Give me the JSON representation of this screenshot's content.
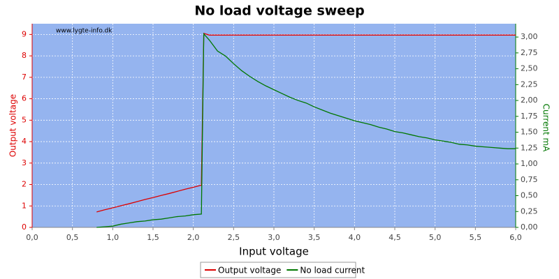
{
  "chart_data": {
    "type": "line",
    "title": "No load voltage sweep",
    "watermark": "www.lygte-info.dk",
    "x_label": "Input voltage",
    "y_label": "Output voltage",
    "y2_label": "Current mA",
    "x": [
      0.8,
      0.9,
      1.0,
      1.1,
      1.2,
      1.3,
      1.4,
      1.5,
      1.6,
      1.7,
      1.8,
      1.9,
      2.0,
      2.1,
      2.13,
      2.2,
      2.3,
      2.4,
      2.5,
      2.6,
      2.7,
      2.8,
      2.9,
      3.0,
      3.1,
      3.2,
      3.3,
      3.4,
      3.5,
      3.6,
      3.7,
      3.8,
      3.9,
      4.0,
      4.1,
      4.2,
      4.3,
      4.4,
      4.5,
      4.6,
      4.7,
      4.8,
      4.9,
      5.0,
      5.1,
      5.2,
      5.3,
      5.4,
      5.5,
      5.6,
      5.7,
      5.8,
      5.9,
      6.0
    ],
    "series": [
      {
        "name": "Output voltage",
        "color": "#dd0000",
        "axis": "y",
        "values": [
          0.72,
          0.82,
          0.91,
          1.01,
          1.1,
          1.2,
          1.3,
          1.39,
          1.49,
          1.58,
          1.68,
          1.78,
          1.87,
          1.97,
          9.05,
          8.97,
          8.97,
          8.97,
          8.97,
          8.97,
          8.97,
          8.97,
          8.97,
          8.97,
          8.97,
          8.97,
          8.97,
          8.97,
          8.97,
          8.97,
          8.97,
          8.97,
          8.97,
          8.97,
          8.97,
          8.97,
          8.97,
          8.97,
          8.97,
          8.97,
          8.97,
          8.97,
          8.97,
          8.97,
          8.97,
          8.97,
          8.97,
          8.97,
          8.97,
          8.97,
          8.97,
          8.97,
          8.97,
          8.97
        ]
      },
      {
        "name": "No load current",
        "color": "#007700",
        "axis": "y2",
        "values": [
          0,
          0.01,
          0.02,
          0.05,
          0.07,
          0.09,
          0.1,
          0.12,
          0.13,
          0.15,
          0.17,
          0.18,
          0.2,
          0.21,
          3.05,
          2.95,
          2.78,
          2.7,
          2.58,
          2.47,
          2.38,
          2.3,
          2.23,
          2.17,
          2.11,
          2.05,
          2.0,
          1.96,
          1.9,
          1.85,
          1.8,
          1.76,
          1.72,
          1.68,
          1.65,
          1.62,
          1.58,
          1.55,
          1.51,
          1.49,
          1.46,
          1.43,
          1.41,
          1.38,
          1.36,
          1.34,
          1.31,
          1.3,
          1.28,
          1.27,
          1.26,
          1.25,
          1.24,
          1.24
        ]
      }
    ],
    "xlim": [
      0,
      6
    ],
    "xticks": [
      {
        "value": 0,
        "label": "0,0"
      },
      {
        "value": 0.5,
        "label": "0,5"
      },
      {
        "value": 1,
        "label": "1,0"
      },
      {
        "value": 1.5,
        "label": "1,5"
      },
      {
        "value": 2,
        "label": "2,0"
      },
      {
        "value": 2.5,
        "label": "2,5"
      },
      {
        "value": 3,
        "label": "3,0"
      },
      {
        "value": 3.5,
        "label": "3,5"
      },
      {
        "value": 4,
        "label": "4,0"
      },
      {
        "value": 4.5,
        "label": "4,5"
      },
      {
        "value": 5,
        "label": "5,0"
      },
      {
        "value": 5.5,
        "label": "5,5"
      },
      {
        "value": 6,
        "label": "6,0"
      }
    ],
    "ylim": [
      0,
      9.5
    ],
    "yticks": [
      0,
      1,
      2,
      3,
      4,
      5,
      6,
      7,
      8,
      9
    ],
    "y2lim": [
      0,
      3.21
    ],
    "y2ticks": [
      {
        "value": 0,
        "label": "0,00"
      },
      {
        "value": 0.25,
        "label": "0,25"
      },
      {
        "value": 0.5,
        "label": "0,50"
      },
      {
        "value": 0.75,
        "label": "0,75"
      },
      {
        "value": 1,
        "label": "1,00"
      },
      {
        "value": 1.25,
        "label": "1,25"
      },
      {
        "value": 1.5,
        "label": "1,50"
      },
      {
        "value": 1.75,
        "label": "1,75"
      },
      {
        "value": 2,
        "label": "2,00"
      },
      {
        "value": 2.25,
        "label": "2,25"
      },
      {
        "value": 2.5,
        "label": "2,50"
      },
      {
        "value": 2.75,
        "label": "2,75"
      },
      {
        "value": 3,
        "label": "3,00"
      }
    ],
    "grid": true
  }
}
